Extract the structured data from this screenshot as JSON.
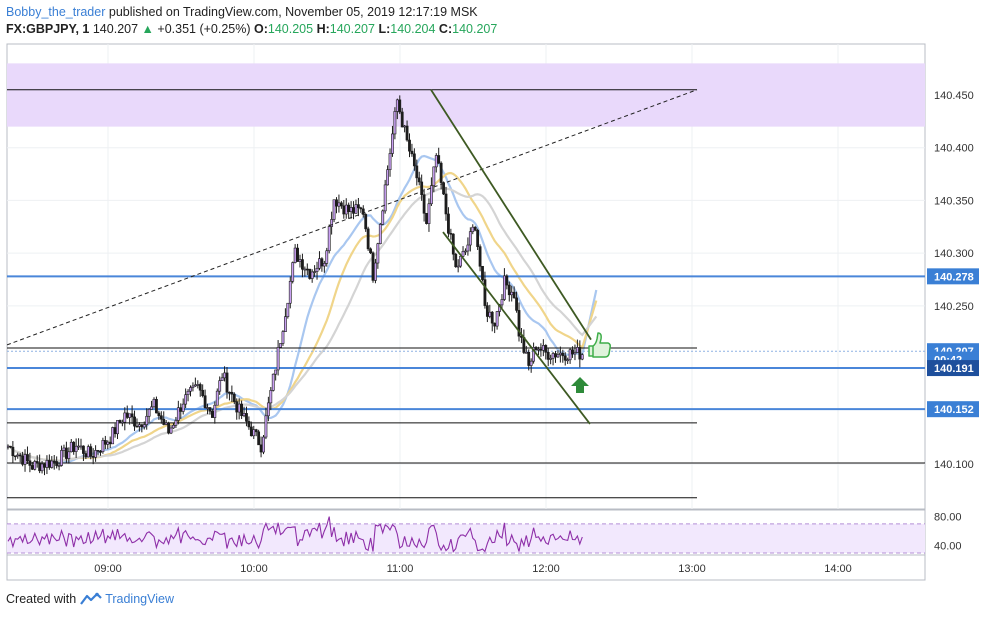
{
  "header": {
    "author": "Bobby_the_trader",
    "published_text": "published on TradingView.com, November 05, 2019 12:17:19 MSK",
    "symbol": "FX:GBPJPY, 1",
    "last": "140.207",
    "change": "+0.351 (+0.25%)",
    "o_label": "O:",
    "o_value": "140.205",
    "h_label": "H:",
    "h_value": "140.207",
    "l_label": "L:",
    "l_value": "140.204",
    "c_label": "C:",
    "c_value": "140.207"
  },
  "footer": {
    "created_with": "Created with",
    "brand": "TradingView"
  },
  "chart_data": {
    "type": "candlestick",
    "x_ticks": [
      "09:00",
      "10:00",
      "11:00",
      "12:00",
      "13:00",
      "14:00"
    ],
    "y_ticks": [
      "140.450",
      "140.400",
      "140.350",
      "140.300",
      "140.250",
      "140.100"
    ],
    "ylim": [
      140.072,
      140.48
    ],
    "price_labels": [
      {
        "text": "140.278",
        "value": 140.278,
        "color": "#3a7fd5"
      },
      {
        "text": "140.207",
        "value": 140.207,
        "color": "#3a7fd5"
      },
      {
        "text": "00:42",
        "value": 140.199,
        "color": "#3a7fd5"
      },
      {
        "text": "140.191",
        "value": 140.191,
        "color": "#1e4f9c"
      },
      {
        "text": "140.152",
        "value": 140.152,
        "color": "#3a7fd5"
      }
    ],
    "horizontal_levels_blue": [
      140.278,
      140.191,
      140.152
    ],
    "horizontal_levels_black": [
      140.455,
      140.21,
      140.139,
      140.101,
      140.068
    ],
    "resistance_zone": [
      140.42,
      140.48
    ],
    "rsi": {
      "ticks": [
        "80.00",
        "40.00"
      ],
      "upper": 70,
      "lower": 30
    },
    "moving_averages": [
      "fast (blue)",
      "medium (yellow)",
      "slow (grey)"
    ],
    "annotations": [
      "thumbs-up",
      "up-arrow",
      "descending channel",
      "dashed trendline"
    ]
  }
}
